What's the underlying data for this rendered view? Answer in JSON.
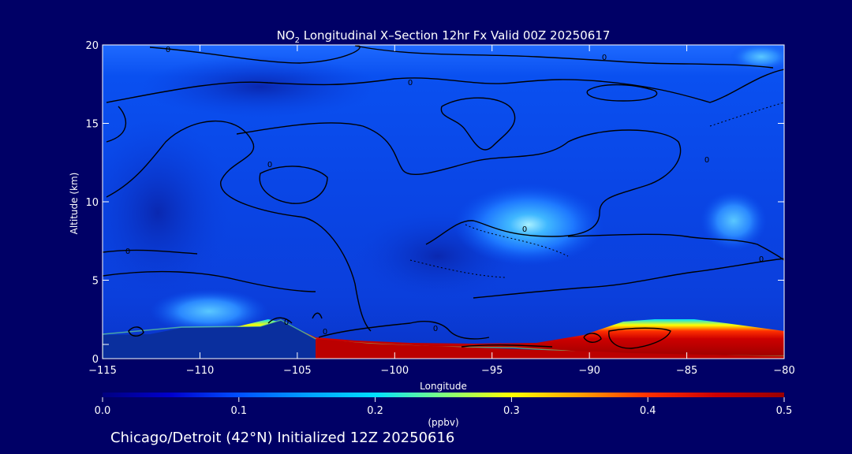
{
  "chart_data": {
    "type": "heatmap",
    "title_prefix": "NO",
    "title_sub": "2",
    "title_rest": " Longitudinal X–Section 12hr  Fx Valid 00Z 20250617",
    "xlabel": "Longitude",
    "ylabel": "Altitude (km)",
    "xlim": [
      -115,
      -80
    ],
    "ylim": [
      0,
      20
    ],
    "x_ticks": [
      -115,
      -110,
      -105,
      -100,
      -95,
      -90,
      -85,
      -80
    ],
    "x_tick_labels": [
      "−115",
      "−110",
      "−105",
      "−100",
      "−95",
      "−90",
      "−85",
      "−80"
    ],
    "y_ticks": [
      0,
      5,
      10,
      15,
      20
    ],
    "y_tick_labels": [
      "0",
      "5",
      "10",
      "15",
      "20"
    ],
    "colorbar": {
      "label": "(ppbv)",
      "range": [
        0.0,
        0.5
      ],
      "ticks": [
        0.0,
        0.1,
        0.2,
        0.3,
        0.4,
        0.5
      ],
      "tick_labels": [
        "0.0",
        "0.1",
        "0.2",
        "0.3",
        "0.4",
        "0.5"
      ],
      "colors": [
        "#000080",
        "#0000cd",
        "#0050ff",
        "#00a0ff",
        "#00e0ff",
        "#7fff7f",
        "#ffff00",
        "#ffa000",
        "#ff3000",
        "#cc0000",
        "#990000"
      ]
    },
    "contour_label": "0",
    "terrain_km": [
      {
        "lon": -115,
        "alt": 1.5
      },
      {
        "lon": -112,
        "alt": 2.0
      },
      {
        "lon": -106,
        "alt": 2.1
      },
      {
        "lon": -105,
        "alt": 2.5
      },
      {
        "lon": -104,
        "alt": 1.4
      },
      {
        "lon": -101,
        "alt": 1.2
      },
      {
        "lon": -95,
        "alt": 0.8
      },
      {
        "lon": -91,
        "alt": 0.6
      },
      {
        "lon": -88,
        "alt": 0.4
      },
      {
        "lon": -87,
        "alt": 0.2
      },
      {
        "lon": -80,
        "alt": 0.2
      }
    ],
    "surface_no2": [
      {
        "lon": -105,
        "alt": 2.3,
        "value": 0.32
      },
      {
        "lon": -100,
        "alt": 1.0,
        "value": 0.45
      },
      {
        "lon": -95,
        "alt": 0.9,
        "value": 0.5
      },
      {
        "lon": -90,
        "alt": 1.2,
        "value": 0.5
      },
      {
        "lon": -86,
        "alt": 2.0,
        "value": 0.5
      },
      {
        "lon": -80,
        "alt": 1.4,
        "value": 0.5
      }
    ],
    "upper_maximum": {
      "lon": -93,
      "alt": 8.2,
      "value": 0.2
    }
  },
  "footer": "Chicago/Detroit (42°N) Initialized 12Z 20250616"
}
